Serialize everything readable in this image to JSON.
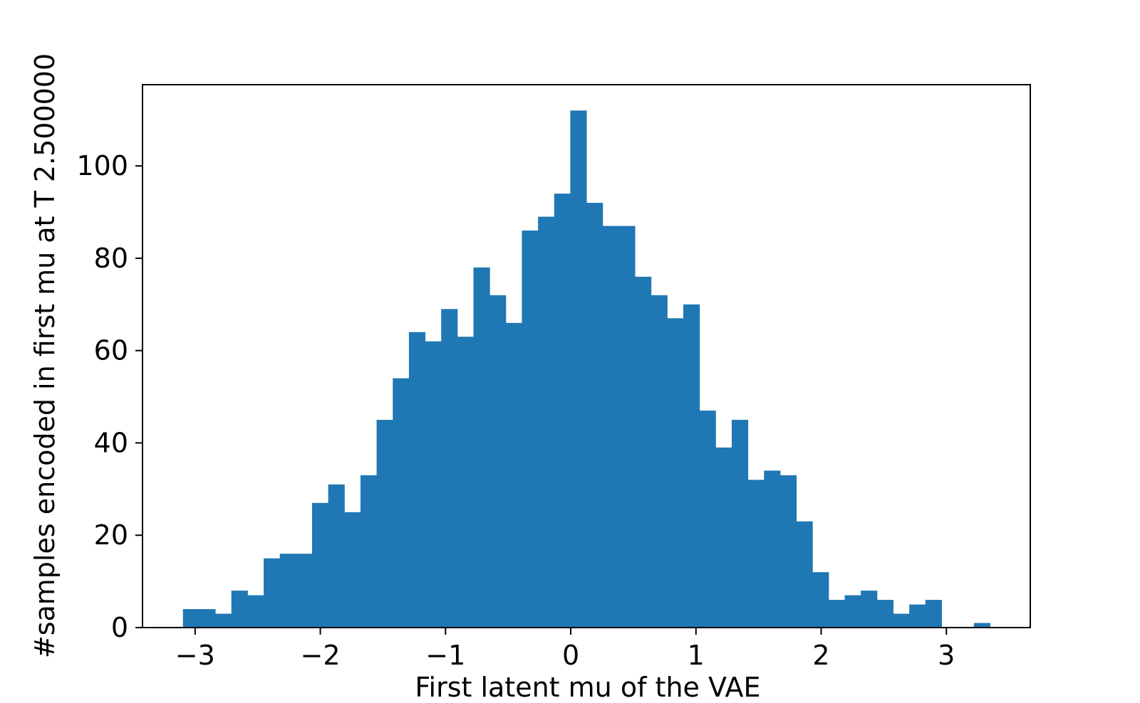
{
  "chart_data": {
    "type": "bar",
    "subtype": "histogram",
    "xlabel": "First latent mu of the VAE",
    "ylabel": "#samples encoded in first mu at T 2.500000",
    "xlim": [
      -3.42,
      3.67
    ],
    "ylim": [
      0,
      117.6
    ],
    "xticks": [
      -3,
      -2,
      -1,
      0,
      1,
      2,
      3
    ],
    "xtick_labels": [
      "−3",
      "−2",
      "−1",
      "0",
      "1",
      "2",
      "3"
    ],
    "yticks": [
      0,
      20,
      40,
      60,
      80,
      100
    ],
    "ytick_labels": [
      "0",
      "20",
      "40",
      "60",
      "80",
      "100"
    ],
    "bin_start": -3.097,
    "bin_width": 0.1289,
    "counts": [
      4,
      4,
      3,
      8,
      7,
      15,
      16,
      16,
      27,
      31,
      25,
      33,
      45,
      54,
      64,
      62,
      69,
      63,
      78,
      72,
      66,
      86,
      89,
      94,
      112,
      92,
      87,
      87,
      76,
      72,
      67,
      70,
      47,
      39,
      45,
      32,
      34,
      33,
      23,
      12,
      6,
      7,
      8,
      6,
      3,
      5,
      6,
      0,
      0,
      1
    ],
    "color": "#1f77b4",
    "grid": false,
    "legend": "none"
  }
}
